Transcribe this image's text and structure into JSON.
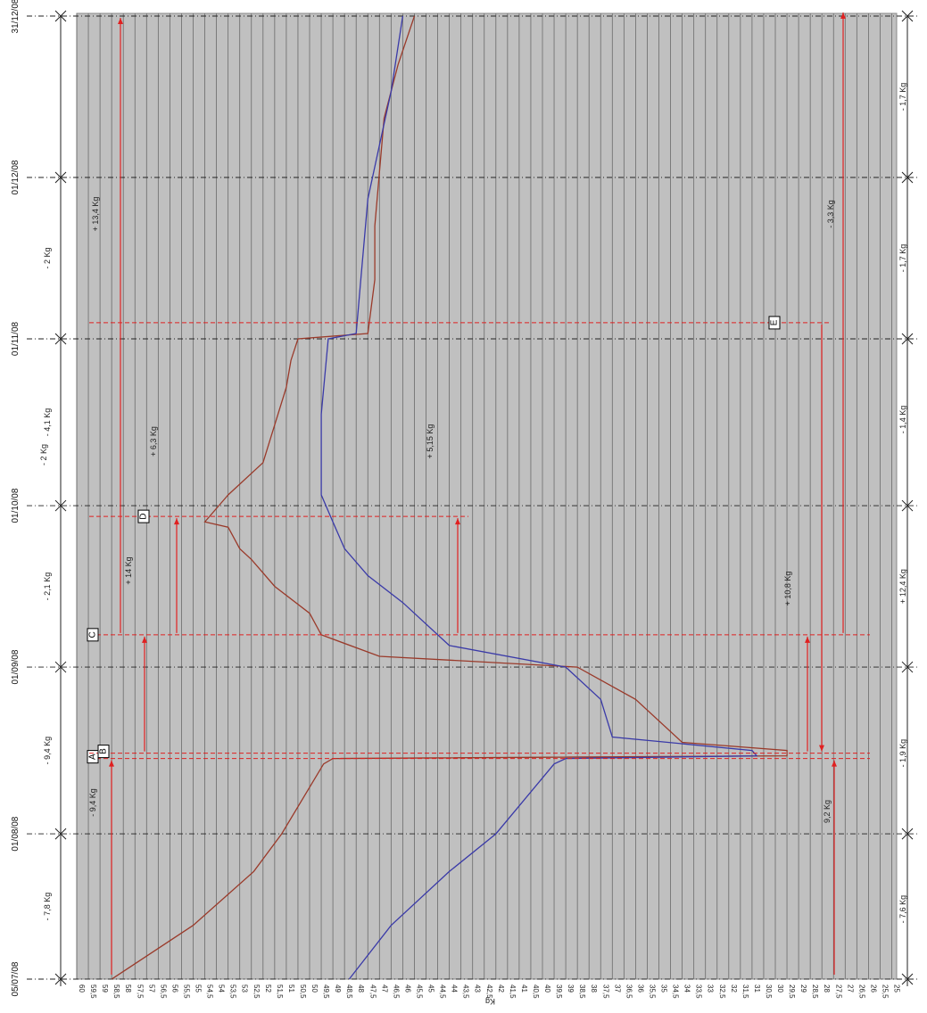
{
  "chart_data": {
    "type": "line",
    "orientation": "rotated-90-ccw",
    "ylabel": "Kg",
    "ylim": [
      25,
      60
    ],
    "y_ticks": [
      "60",
      "59,5",
      "59",
      "58,5",
      "58",
      "57,5",
      "57",
      "56,5",
      "56",
      "55,5",
      "55",
      "54,5",
      "54",
      "53,5",
      "53",
      "52,5",
      "52",
      "51,5",
      "51",
      "50,5",
      "50",
      "49,5",
      "49",
      "48,5",
      "48",
      "47,5",
      "47",
      "46,5",
      "46",
      "45,5",
      "45",
      "44,5",
      "44",
      "43,5",
      "43",
      "42,5",
      "42",
      "41,5",
      "41",
      "40,5",
      "40",
      "39,5",
      "39",
      "38,5",
      "38",
      "37,5",
      "37",
      "36,5",
      "36",
      "35,5",
      "35",
      "34,5",
      "34",
      "33,5",
      "33",
      "32,5",
      "32",
      "31,5",
      "31",
      "30,5",
      "30",
      "29,5",
      "29",
      "28,5",
      "28",
      "27,5",
      "27",
      "26,5",
      "26",
      "25,5",
      "25"
    ],
    "date_ticks": [
      {
        "label": "05/07/08",
        "day": 0
      },
      {
        "label": "01/08/08",
        "day": 27
      },
      {
        "label": "01/09/08",
        "day": 58
      },
      {
        "label": "01/10/08",
        "day": 88
      },
      {
        "label": "01/11/08",
        "day": 119
      },
      {
        "label": "01/12/08",
        "day": 149
      },
      {
        "label": "31/12/08",
        "day": 179
      }
    ],
    "grid": true,
    "series": [
      {
        "color": "#9a3a2a",
        "points": [
          [
            0,
            58.5
          ],
          [
            10,
            55
          ],
          [
            20,
            52.4
          ],
          [
            27,
            51.2
          ],
          [
            40,
            49.4
          ],
          [
            41,
            49
          ],
          [
            41.5,
            29.5
          ],
          [
            42.5,
            29.5
          ],
          [
            44,
            34
          ],
          [
            52,
            36
          ],
          [
            58,
            38.5
          ],
          [
            60,
            47
          ],
          [
            64,
            49.5
          ],
          [
            68,
            50
          ],
          [
            73,
            51.5
          ],
          [
            78,
            52.5
          ],
          [
            80,
            53
          ],
          [
            84,
            53.5
          ],
          [
            85,
            54.5
          ],
          [
            90,
            53.5
          ],
          [
            96,
            52
          ],
          [
            110,
            51
          ],
          [
            115,
            50.8
          ],
          [
            119,
            50.5
          ],
          [
            120,
            47.5
          ],
          [
            130,
            47.2
          ],
          [
            140,
            47.2
          ],
          [
            150,
            47
          ],
          [
            160,
            46.8
          ],
          [
            170,
            46.2
          ],
          [
            179,
            45.5
          ]
        ]
      },
      {
        "color": "#3a3aa8",
        "points": [
          [
            0,
            48.3
          ],
          [
            10,
            46.5
          ],
          [
            20,
            44
          ],
          [
            27,
            42
          ],
          [
            40,
            39.5
          ],
          [
            41,
            39
          ],
          [
            41.5,
            30.8
          ],
          [
            42.5,
            31
          ],
          [
            45,
            37
          ],
          [
            52,
            37.5
          ],
          [
            58,
            39
          ],
          [
            62,
            44
          ],
          [
            70,
            46
          ],
          [
            75,
            47.5
          ],
          [
            80,
            48.5
          ],
          [
            85,
            49
          ],
          [
            90,
            49.5
          ],
          [
            105,
            49.5
          ],
          [
            119,
            49.2
          ],
          [
            120,
            48
          ],
          [
            130,
            47.8
          ],
          [
            145,
            47.5
          ],
          [
            155,
            47
          ],
          [
            165,
            46.5
          ],
          [
            179,
            46
          ]
        ]
      }
    ],
    "annotations": [
      {
        "label": "A",
        "day": 41
      },
      {
        "label": "B",
        "day": 42
      },
      {
        "label": "C",
        "day": 64
      },
      {
        "label": "D",
        "day": 86
      },
      {
        "label": "E",
        "day": 122
      }
    ],
    "arrow_labels": [
      {
        "text": "- 9,4 Kg",
        "series": "top"
      },
      {
        "text": "+ 14 Kg",
        "series": "top"
      },
      {
        "text": "+ 13,4 Kg",
        "series": "top"
      },
      {
        "text": "+ 6,3 Kg",
        "series": "top"
      },
      {
        "text": "- 2 Kg",
        "series": "top"
      },
      {
        "text": "+ 5,15 Kg",
        "series": "mid"
      },
      {
        "text": "9,2 Kg",
        "series": "bottom"
      },
      {
        "text": "+ 10,8 Kg",
        "series": "bottom"
      },
      {
        "text": "- 3,3 Kg",
        "series": "bottom"
      }
    ],
    "interval_top": [
      "- 7,8 Kg",
      "- 9,4 Kg",
      "- 2,1 Kg",
      "- 4,1 Kg",
      "- 2 Kg"
    ],
    "interval_bottom": [
      "- 7,6 Kg",
      "- 1,9 Kg",
      "+ 12,4 Kg",
      "- 1,4 Kg",
      "- 1,7 Kg",
      "- 1,7 Kg"
    ]
  }
}
